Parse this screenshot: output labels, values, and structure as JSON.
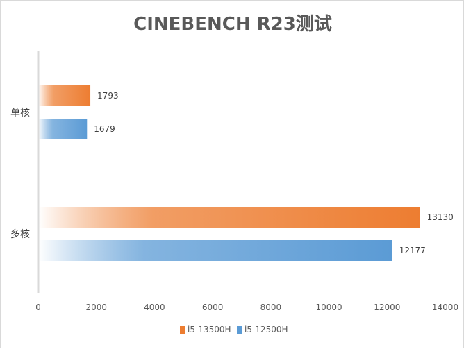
{
  "chart_data": {
    "type": "bar",
    "orientation": "horizontal",
    "title": "CINEBENCH R23测试",
    "categories": [
      "单核",
      "多核"
    ],
    "series": [
      {
        "name": "i5-13500H",
        "values": [
          1793,
          13130
        ],
        "color": "#ed7d31"
      },
      {
        "name": "i5-12500H",
        "values": [
          1679,
          12177
        ],
        "color": "#5b9bd5"
      }
    ],
    "xlim": [
      0,
      14000
    ],
    "xticks": [
      "0",
      "2000",
      "4000",
      "6000",
      "8000",
      "10000",
      "12000",
      "14000"
    ],
    "grid": false,
    "legend_position": "bottom",
    "bar_style": "gradient fading to white toward axis"
  }
}
